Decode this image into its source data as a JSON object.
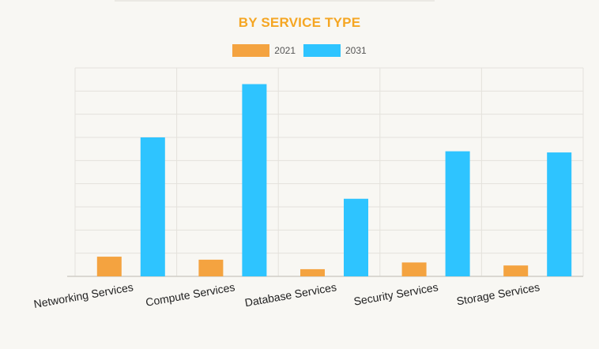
{
  "chart_data": {
    "type": "bar",
    "title": "BY SERVICE TYPE",
    "categories": [
      "Networking Services",
      "Compute Services",
      "Database Services",
      "Security Services",
      "Storage Services"
    ],
    "series": [
      {
        "name": "2021",
        "color": "#f4a340",
        "values": [
          8.5,
          7.2,
          3.1,
          6.0,
          4.7
        ]
      },
      {
        "name": "2031",
        "color": "#2ec4ff",
        "values": [
          60,
          83,
          33.5,
          54,
          53.5
        ]
      }
    ],
    "ylim": [
      0,
      90
    ],
    "grid": true,
    "xlabel": "",
    "ylabel": "",
    "legend": "top-center"
  }
}
